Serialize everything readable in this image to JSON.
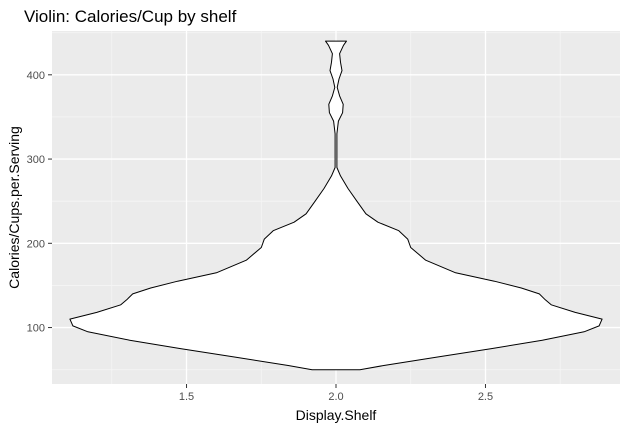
{
  "chart_data": {
    "type": "violin",
    "title": "Violin: Calories/Cup by shelf",
    "xlabel": "Display.Shelf",
    "ylabel": "Calories/Cups.per.Serving",
    "xlim": [
      1.05,
      2.95
    ],
    "ylim": [
      33,
      452
    ],
    "x_ticks": [
      {
        "value": 1.5,
        "label": "1.5"
      },
      {
        "value": 2.0,
        "label": "2.0"
      },
      {
        "value": 2.5,
        "label": "2.5"
      }
    ],
    "y_ticks": [
      {
        "value": 100,
        "label": "100"
      },
      {
        "value": 200,
        "label": "200"
      },
      {
        "value": 300,
        "label": "300"
      },
      {
        "value": 400,
        "label": "400"
      }
    ],
    "grid": true,
    "violin": {
      "center": 2.0,
      "fill": "#ffffff",
      "stroke": "#000000",
      "profile": [
        {
          "y": 50,
          "half_width": 0.08
        },
        {
          "y": 55,
          "half_width": 0.16
        },
        {
          "y": 65,
          "half_width": 0.34
        },
        {
          "y": 75,
          "half_width": 0.52
        },
        {
          "y": 85,
          "half_width": 0.69
        },
        {
          "y": 95,
          "half_width": 0.83
        },
        {
          "y": 102,
          "half_width": 0.88
        },
        {
          "y": 110,
          "half_width": 0.89
        },
        {
          "y": 118,
          "half_width": 0.8
        },
        {
          "y": 127,
          "half_width": 0.72
        },
        {
          "y": 133,
          "half_width": 0.7
        },
        {
          "y": 140,
          "half_width": 0.68
        },
        {
          "y": 147,
          "half_width": 0.62
        },
        {
          "y": 155,
          "half_width": 0.53
        },
        {
          "y": 165,
          "half_width": 0.4
        },
        {
          "y": 180,
          "half_width": 0.3
        },
        {
          "y": 195,
          "half_width": 0.25
        },
        {
          "y": 205,
          "half_width": 0.24
        },
        {
          "y": 215,
          "half_width": 0.21
        },
        {
          "y": 225,
          "half_width": 0.14
        },
        {
          "y": 235,
          "half_width": 0.1
        },
        {
          "y": 250,
          "half_width": 0.07
        },
        {
          "y": 265,
          "half_width": 0.04
        },
        {
          "y": 280,
          "half_width": 0.015
        },
        {
          "y": 290,
          "half_width": 0.003
        },
        {
          "y": 310,
          "half_width": 0.003
        },
        {
          "y": 330,
          "half_width": 0.003
        },
        {
          "y": 345,
          "half_width": 0.008
        },
        {
          "y": 355,
          "half_width": 0.022
        },
        {
          "y": 365,
          "half_width": 0.024
        },
        {
          "y": 375,
          "half_width": 0.012
        },
        {
          "y": 385,
          "half_width": 0.004
        },
        {
          "y": 395,
          "half_width": 0.01
        },
        {
          "y": 405,
          "half_width": 0.02
        },
        {
          "y": 415,
          "half_width": 0.015
        },
        {
          "y": 425,
          "half_width": 0.012
        },
        {
          "y": 435,
          "half_width": 0.025
        },
        {
          "y": 440,
          "half_width": 0.035
        }
      ]
    }
  }
}
